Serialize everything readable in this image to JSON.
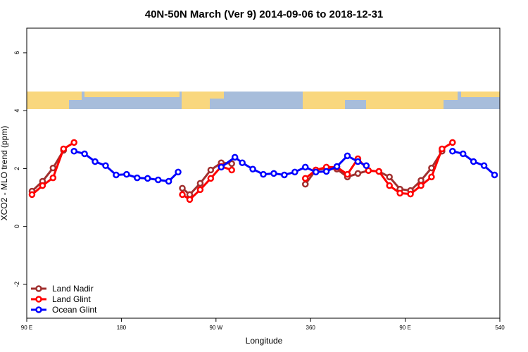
{
  "chart_data": {
    "type": "line",
    "title": "40N-50N March (Ver 9)   2014-09-06 to 2018-12-31",
    "x_label": "Longitude",
    "y_label": "XCO2 - MLO trend (ppm)",
    "xlim": [
      90,
      540
    ],
    "xticks": [
      {
        "value": 90,
        "label": "90 E"
      },
      180,
      {
        "value": 270,
        "label": "90 W"
      },
      360,
      {
        "value": 450,
        "label": "90 E"
      },
      540
    ],
    "ylim": [
      -3.17,
      6.85
    ],
    "yticks": [
      -2,
      0,
      2,
      4,
      6
    ],
    "legend": "bottom-left",
    "series": [
      {
        "name": "Land Nadir",
        "color": "#a0302f",
        "x": [
          95,
          105,
          115,
          125,
          null,
          238,
          245,
          255,
          265,
          275,
          285,
          null,
          355,
          365,
          375,
          385,
          395,
          405,
          415,
          425,
          435,
          445,
          455,
          465,
          475,
          485
        ],
        "values": [
          1.22,
          1.56,
          2.02,
          2.63,
          null,
          1.32,
          1.1,
          1.49,
          1.95,
          2.2,
          2.17,
          null,
          1.46,
          1.95,
          2.0,
          1.98,
          1.71,
          1.83,
          1.93,
          1.9,
          1.71,
          1.29,
          1.24,
          1.59,
          2.02,
          2.6
        ]
      },
      {
        "name": "Land Glint",
        "color": "#ff0000",
        "x": [
          95,
          105,
          115,
          125,
          135,
          null,
          238,
          245,
          255,
          265,
          275,
          285,
          null,
          355,
          365,
          375,
          385,
          395,
          405,
          415,
          425,
          435,
          445,
          455,
          465,
          475,
          485,
          495
        ],
        "values": [
          1.1,
          1.41,
          1.68,
          2.68,
          2.9,
          null,
          1.1,
          0.93,
          1.27,
          1.66,
          2.07,
          1.95,
          null,
          1.66,
          1.95,
          2.05,
          2.05,
          1.8,
          2.34,
          1.93,
          1.9,
          1.41,
          1.15,
          1.12,
          1.41,
          1.71,
          2.68,
          2.9
        ]
      },
      {
        "name": "Ocean Glint",
        "color": "#0000ff",
        "x": [
          135,
          145,
          155,
          165,
          175,
          185,
          195,
          205,
          215,
          225,
          234,
          null,
          275,
          288,
          295,
          305,
          315,
          325,
          335,
          345,
          355,
          365,
          375,
          385,
          395,
          405,
          413,
          null,
          495,
          505,
          515,
          525,
          535
        ],
        "values": [
          2.6,
          2.51,
          2.24,
          2.1,
          1.78,
          1.8,
          1.68,
          1.66,
          1.61,
          1.56,
          1.88,
          null,
          2.05,
          2.39,
          2.2,
          1.98,
          1.8,
          1.83,
          1.78,
          1.88,
          2.05,
          1.88,
          1.9,
          2.07,
          2.44,
          2.24,
          2.1,
          null,
          2.6,
          2.51,
          2.24,
          2.1,
          1.78
        ]
      }
    ]
  }
}
